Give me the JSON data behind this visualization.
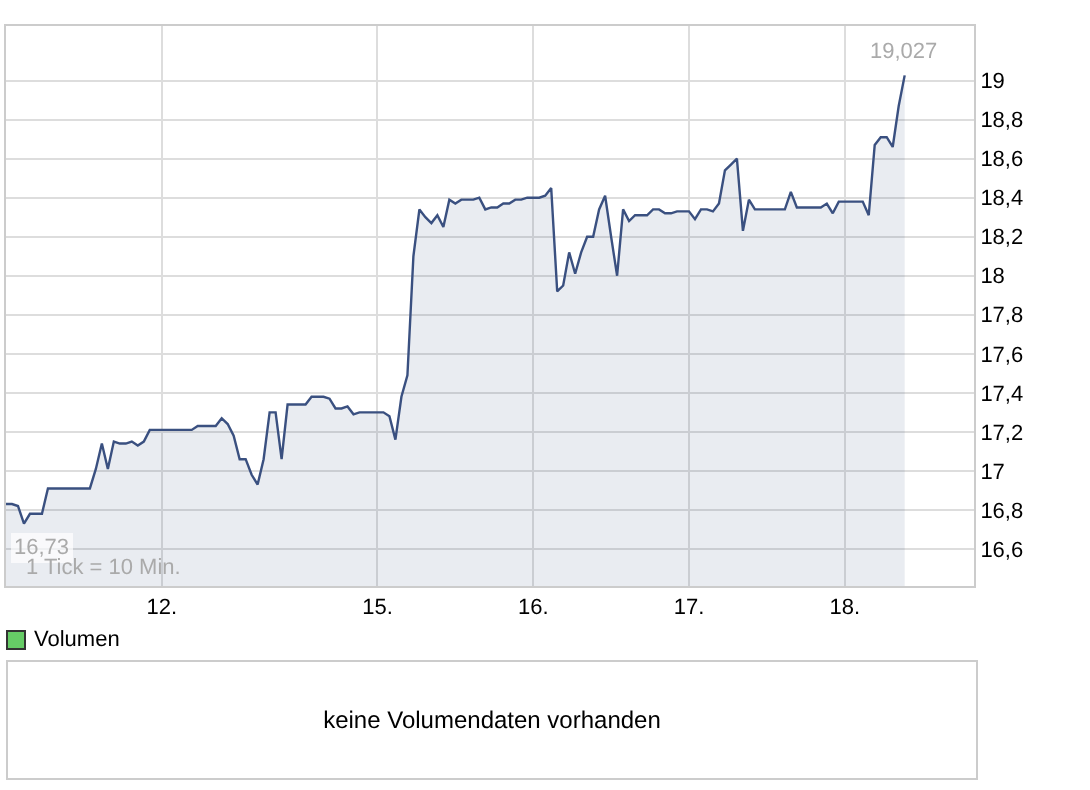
{
  "chart_data": [
    {
      "type": "area",
      "categories": [
        null,
        null,
        null,
        null,
        null,
        null,
        null,
        null,
        null,
        null,
        null,
        null,
        null,
        null,
        null,
        null,
        null,
        null,
        null,
        null,
        null,
        null,
        null,
        null,
        null,
        null,
        "12.",
        null,
        null,
        null,
        null,
        null,
        null,
        null,
        null,
        null,
        null,
        null,
        null,
        null,
        null,
        null,
        null,
        null,
        null,
        null,
        null,
        null,
        null,
        null,
        null,
        null,
        null,
        null,
        null,
        null,
        null,
        null,
        null,
        null,
        null,
        null,
        "15.",
        null,
        null,
        null,
        null,
        null,
        null,
        null,
        null,
        null,
        null,
        null,
        null,
        null,
        null,
        null,
        null,
        null,
        null,
        null,
        null,
        null,
        null,
        null,
        null,
        null,
        "16.",
        null,
        null,
        null,
        null,
        null,
        null,
        null,
        null,
        null,
        null,
        null,
        null,
        null,
        null,
        null,
        null,
        null,
        null,
        null,
        null,
        null,
        null,
        null,
        null,
        null,
        "17.",
        null,
        null,
        null,
        null,
        null,
        null,
        null,
        null,
        null,
        null,
        null,
        null,
        null,
        null,
        null,
        null,
        null,
        null,
        null,
        null,
        null,
        null,
        null,
        null,
        null,
        "18.",
        null,
        null,
        null,
        null,
        null,
        null,
        null,
        null,
        null,
        null
      ],
      "series": [
        {
          "color": "#3a5080",
          "values": [
            16.83,
            16.83,
            16.82,
            16.73,
            16.78,
            16.78,
            16.78,
            16.91,
            16.91,
            16.91,
            16.91,
            16.91,
            16.91,
            16.91,
            16.91,
            17.01,
            17.14,
            17.01,
            17.15,
            17.14,
            17.14,
            17.15,
            17.13,
            17.15,
            17.21,
            17.21,
            17.21,
            17.21,
            17.21,
            17.21,
            17.21,
            17.21,
            17.23,
            17.23,
            17.23,
            17.23,
            17.27,
            17.24,
            17.18,
            17.06,
            17.06,
            16.98,
            16.93,
            17.06,
            17.3,
            17.3,
            17.06,
            17.34,
            17.34,
            17.34,
            17.34,
            17.38,
            17.38,
            17.38,
            17.37,
            17.32,
            17.32,
            17.33,
            17.29,
            17.3,
            17.3,
            17.3,
            17.3,
            17.3,
            17.28,
            17.16,
            17.38,
            17.49,
            18.1,
            18.34,
            18.3,
            18.27,
            18.31,
            18.25,
            18.39,
            18.37,
            18.39,
            18.39,
            18.39,
            18.4,
            18.34,
            18.35,
            18.35,
            18.37,
            18.37,
            18.39,
            18.39,
            18.4,
            18.4,
            18.4,
            18.41,
            18.45,
            17.92,
            17.95,
            18.12,
            18.01,
            18.12,
            18.2,
            18.2,
            18.34,
            18.41,
            18.2,
            18.0,
            18.34,
            18.28,
            18.31,
            18.31,
            18.31,
            18.34,
            18.34,
            18.32,
            18.32,
            18.33,
            18.33,
            18.33,
            18.29,
            18.34,
            18.34,
            18.33,
            18.37,
            18.54,
            18.57,
            18.6,
            18.23,
            18.39,
            18.34,
            18.34,
            18.34,
            18.34,
            18.34,
            18.34,
            18.43,
            18.35,
            18.35,
            18.35,
            18.35,
            18.35,
            18.37,
            18.32,
            18.38,
            18.38,
            18.38,
            18.38,
            18.38,
            18.31,
            18.67,
            18.71,
            18.71,
            18.66,
            18.87,
            19.027
          ]
        }
      ],
      "ylim": [
        16.41,
        19.28
      ],
      "yticks": [
        {
          "value": 16.6,
          "label": "16,6"
        },
        {
          "value": 16.8,
          "label": "16,8"
        },
        17,
        {
          "value": 17.2,
          "label": "17,2"
        },
        {
          "value": 17.4,
          "label": "17,4"
        },
        {
          "value": 17.6,
          "label": "17,6"
        },
        {
          "value": 17.8,
          "label": "17,8"
        },
        18,
        {
          "value": 18.2,
          "label": "18,2"
        },
        {
          "value": 18.4,
          "label": "18,4"
        },
        {
          "value": 18.6,
          "label": "18,6"
        },
        {
          "value": 18.8,
          "label": "18,8"
        },
        19
      ],
      "grid": true,
      "annotations": [
        {
          "text": "16,73",
          "y": 16.73
        },
        {
          "text": "19,027",
          "y": 19.027
        },
        "1 Tick = 10 Min."
      ]
    },
    {
      "type": "other",
      "title": "Volumen",
      "color": "#66cc66",
      "annotations": [
        "keine Volumendaten vorhanden"
      ]
    }
  ]
}
